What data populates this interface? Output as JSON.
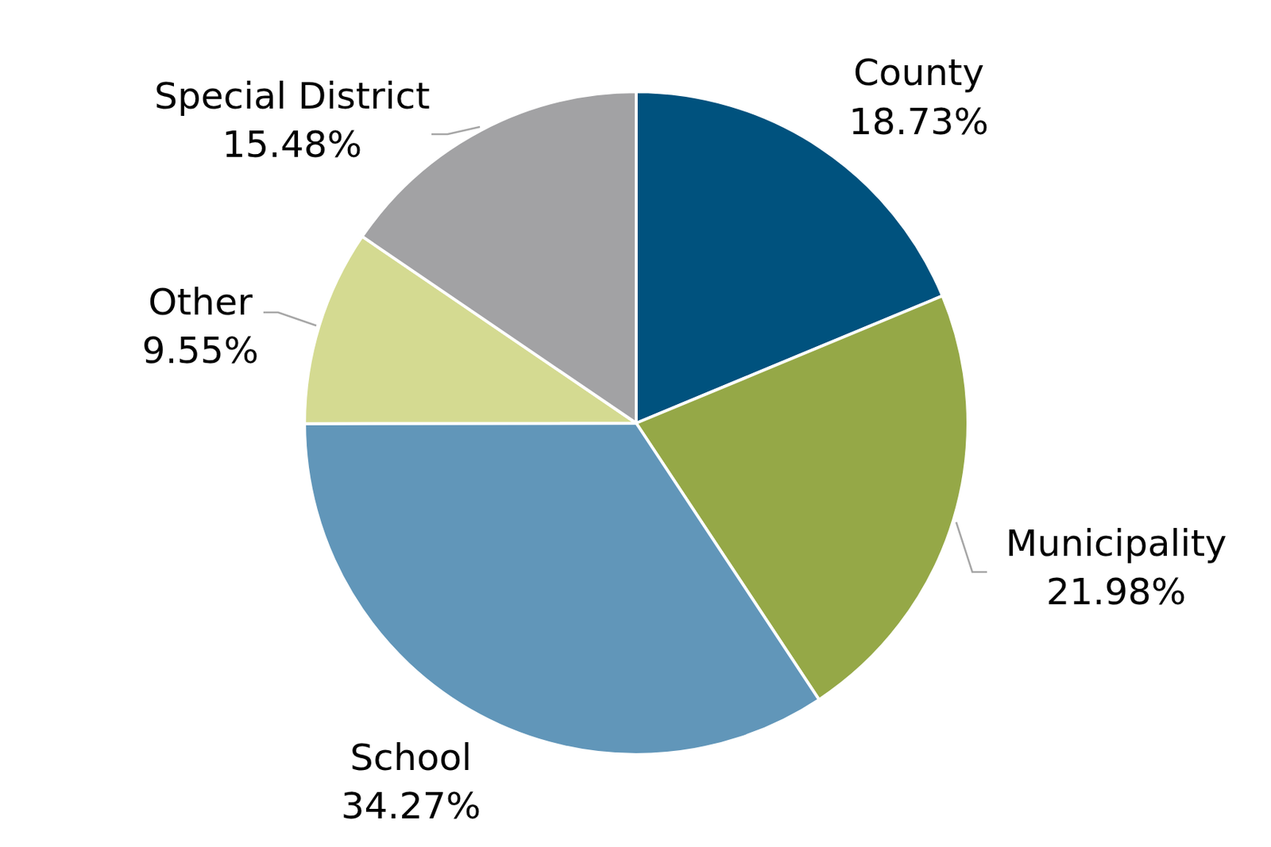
{
  "chart_data": {
    "type": "pie",
    "categories": [
      "County",
      "Municipality",
      "School",
      "Other",
      "Special District"
    ],
    "values": [
      18.73,
      21.98,
      34.27,
      9.55,
      15.48
    ],
    "value_labels": [
      "18.73%",
      "21.98%",
      "34.27%",
      "9.55%",
      "15.48%"
    ],
    "colors": [
      "#00527e",
      "#95a847",
      "#6196b9",
      "#d4da91",
      "#a2a2a4"
    ],
    "data_labels": true
  }
}
